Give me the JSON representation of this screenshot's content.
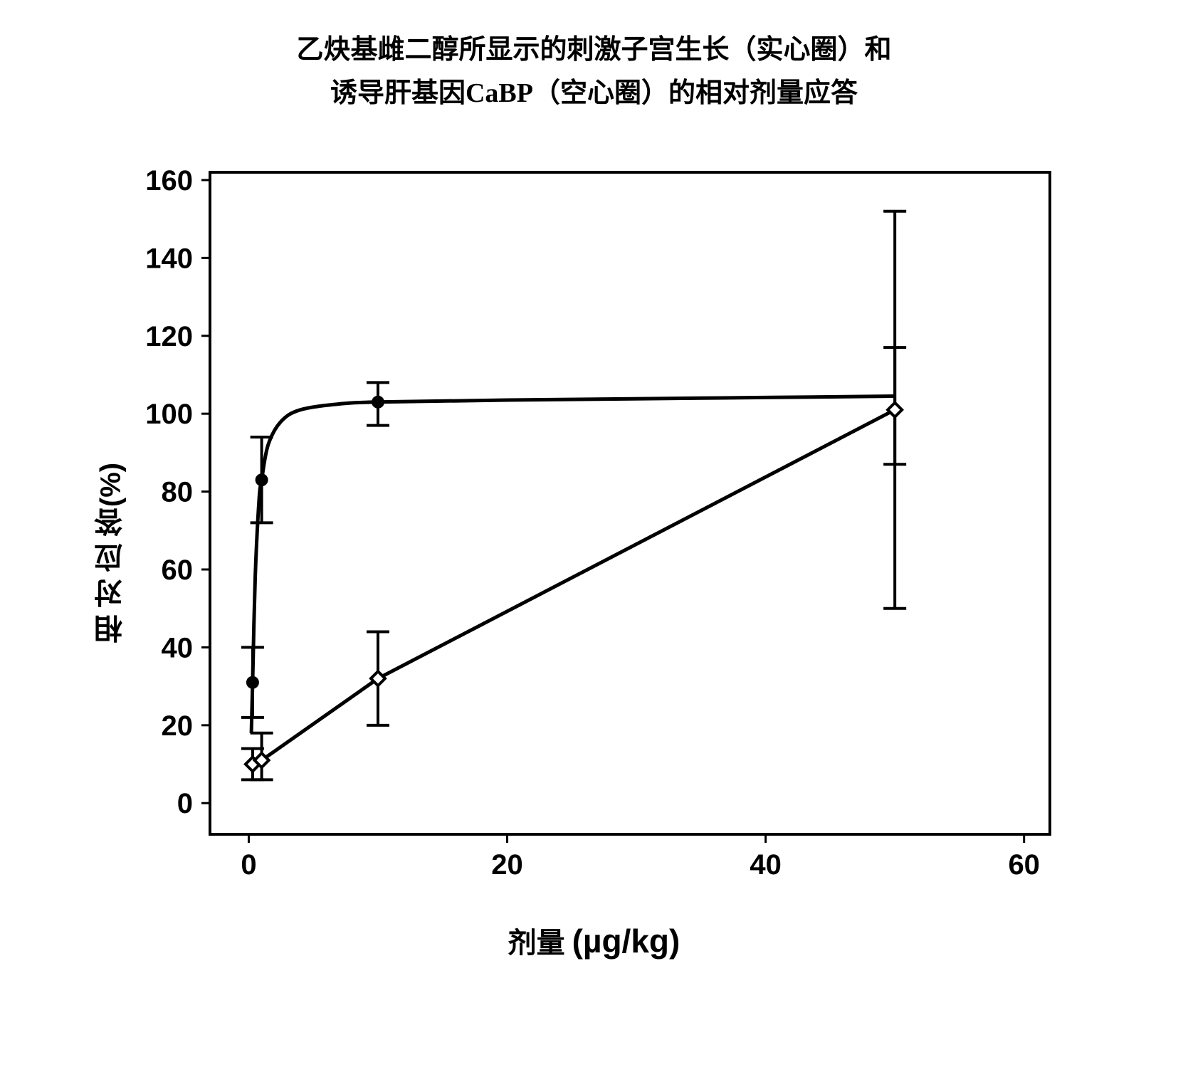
{
  "title_line1": "乙炔基雌二醇所显示的刺激子宫生长（实心圈）和",
  "title_line2": "诱导肝基因CaBP（空心圈）的相对剂量应答",
  "ylabel_main": "相对应答",
  "ylabel_pct": "(%)",
  "xlabel_main": "剂量",
  "xlabel_unit": "(µg/kg)",
  "chart": {
    "type": "line-scatter-errorbar",
    "background_color": "#ffffff",
    "plot_border_color": "#000000",
    "plot_border_width": 4,
    "xlim": [
      -3,
      62
    ],
    "ylim": [
      -8,
      162
    ],
    "xticks": [
      0,
      20,
      40,
      60
    ],
    "yticks": [
      0,
      20,
      40,
      60,
      80,
      100,
      120,
      140,
      160
    ],
    "tick_fontsize": 40,
    "tick_fontweight": "bold",
    "tick_color": "#000000",
    "tick_length": 12,
    "series_filled": {
      "name": "uterine-growth-filled",
      "marker": "circle-filled",
      "marker_color": "#000000",
      "marker_radius": 9,
      "line_color": "#000000",
      "line_width": 5,
      "points": [
        {
          "x": 0.3,
          "y": 31,
          "err_lo": 22,
          "err_hi": 40
        },
        {
          "x": 1.0,
          "y": 83,
          "err_lo": 72,
          "err_hi": 94
        },
        {
          "x": 10,
          "y": 103,
          "err_lo": 97,
          "err_hi": 108
        },
        {
          "x": 50,
          "y": 101,
          "err_lo": 87,
          "err_hi": 117
        }
      ],
      "curve": [
        {
          "x": 0.2,
          "y": 18
        },
        {
          "x": 0.3,
          "y": 31
        },
        {
          "x": 0.5,
          "y": 58
        },
        {
          "x": 0.8,
          "y": 78
        },
        {
          "x": 1.0,
          "y": 83
        },
        {
          "x": 1.5,
          "y": 92
        },
        {
          "x": 2.5,
          "y": 98
        },
        {
          "x": 4,
          "y": 101
        },
        {
          "x": 7,
          "y": 102.5
        },
        {
          "x": 10,
          "y": 103
        },
        {
          "x": 20,
          "y": 103.5
        },
        {
          "x": 35,
          "y": 104
        },
        {
          "x": 50,
          "y": 104.5
        }
      ]
    },
    "series_open": {
      "name": "liver-cabp-open",
      "marker": "diamond-open",
      "marker_stroke": "#000000",
      "marker_fill": "#ffffff",
      "marker_size": 20,
      "line_color": "#000000",
      "line_width": 5,
      "points": [
        {
          "x": 0.3,
          "y": 10,
          "err_lo": 6,
          "err_hi": 14
        },
        {
          "x": 1.0,
          "y": 11,
          "err_lo": 6,
          "err_hi": 18
        },
        {
          "x": 10,
          "y": 32,
          "err_lo": 20,
          "err_hi": 44
        },
        {
          "x": 50,
          "y": 101,
          "err_lo": 50,
          "err_hi": 152
        }
      ],
      "curve": [
        {
          "x": 0.3,
          "y": 10
        },
        {
          "x": 1.0,
          "y": 11
        },
        {
          "x": 10,
          "y": 32
        },
        {
          "x": 50,
          "y": 101
        }
      ]
    },
    "errorbar_color": "#000000",
    "errorbar_width": 4,
    "errorbar_cap": 16
  }
}
